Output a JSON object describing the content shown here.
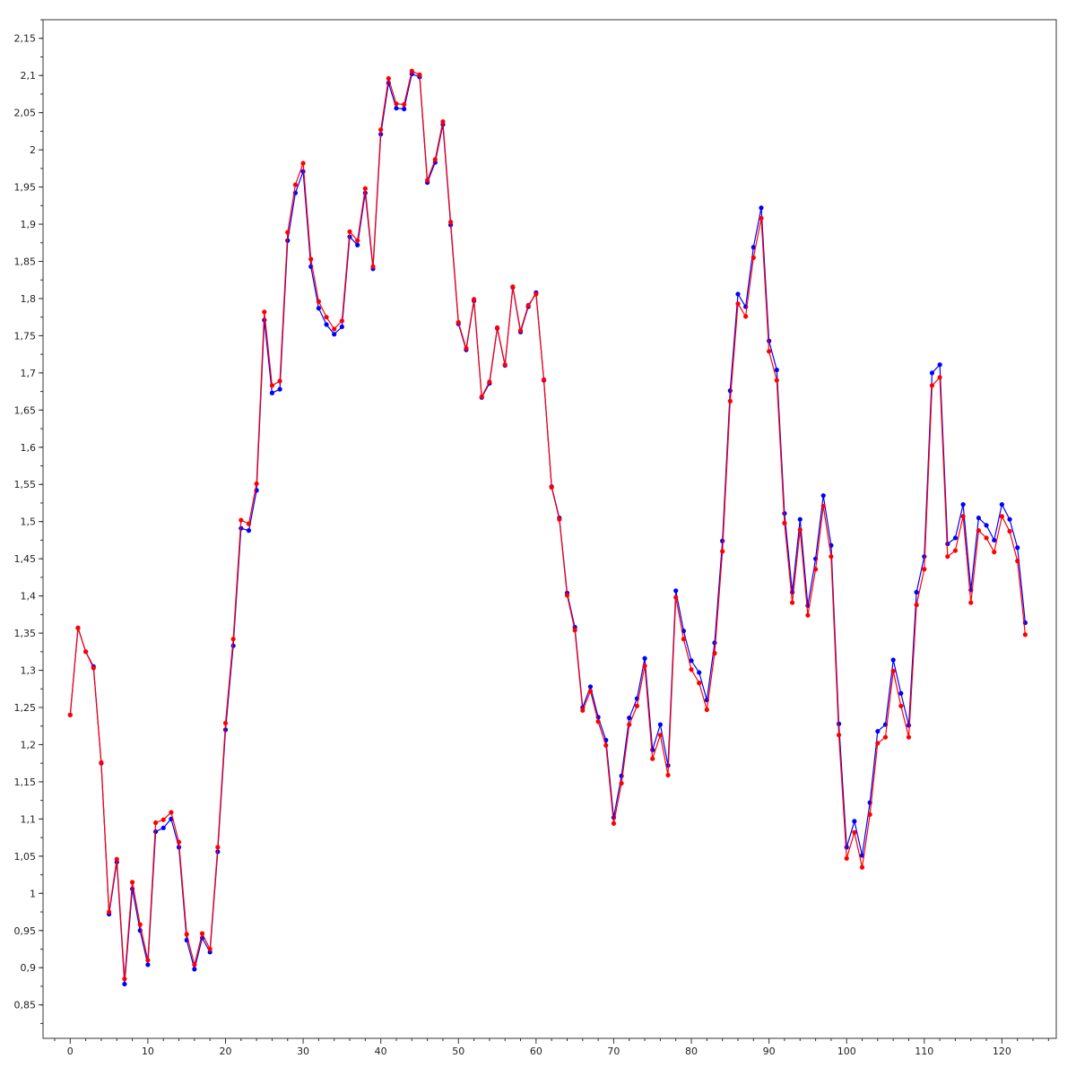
{
  "chart_data": {
    "type": "line",
    "title": "",
    "xlabel": "",
    "ylabel": "",
    "xlim": [
      -3.5,
      127
    ],
    "ylim": [
      0.805,
      2.175
    ],
    "grid": true,
    "legend": "none",
    "x_tick_values": [
      0,
      10,
      20,
      30,
      40,
      50,
      60,
      70,
      80,
      90,
      100,
      110,
      120
    ],
    "x_tick_labels": [
      "0",
      "10",
      "20",
      "30",
      "40",
      "50",
      "60",
      "70",
      "80",
      "90",
      "100",
      "110",
      "120"
    ],
    "y_tick_values": [
      0.85,
      0.9,
      0.95,
      1,
      1.05,
      1.1,
      1.15,
      1.2,
      1.25,
      1.3,
      1.35,
      1.4,
      1.45,
      1.5,
      1.55,
      1.6,
      1.65,
      1.7,
      1.75,
      1.8,
      1.85,
      1.9,
      1.95,
      2,
      2.05,
      2.1,
      2.15
    ],
    "y_tick_labels": [
      "0,85",
      "0,9",
      "0,95",
      "1",
      "1,05",
      "1,1",
      "1,15",
      "1,2",
      "1,25",
      "1,3",
      "1,35",
      "1,4",
      "1,45",
      "1,5",
      "1,55",
      "1,6",
      "1,65",
      "1,7",
      "1,75",
      "1,8",
      "1,85",
      "1,9",
      "1,95",
      "2",
      "2,05",
      "2,1",
      "2,15"
    ],
    "series": [
      {
        "color": "#0000ff",
        "x": [
          0,
          1,
          2,
          3,
          4,
          5,
          6,
          7,
          8,
          9,
          10,
          11,
          12,
          13,
          14,
          15,
          16,
          17,
          18,
          19,
          20,
          21,
          22,
          23,
          24,
          25,
          26,
          27,
          28,
          29,
          30,
          31,
          32,
          33,
          34,
          35,
          36,
          37,
          38,
          39,
          40,
          41,
          42,
          43,
          44,
          45,
          46,
          47,
          48,
          49,
          50,
          51,
          52,
          53,
          54,
          55,
          56,
          57,
          58,
          59,
          60,
          61,
          62,
          63,
          64,
          65,
          66,
          67,
          68,
          69,
          70,
          71,
          72,
          73,
          74,
          75,
          76,
          77,
          78,
          79,
          80,
          81,
          82,
          83,
          84,
          85,
          86,
          87,
          88,
          89,
          90,
          91,
          92,
          93,
          94,
          95,
          96,
          97,
          98,
          99,
          100,
          101,
          102,
          103,
          104,
          105,
          106,
          107,
          108,
          109,
          110,
          111,
          112,
          113,
          114,
          115,
          116,
          117,
          118,
          119,
          120,
          121,
          122,
          123
        ],
        "values": [
          1.24,
          1.357,
          1.325,
          1.305,
          1.175,
          0.972,
          1.042,
          0.878,
          1.006,
          0.95,
          0.904,
          1.083,
          1.088,
          1.1,
          1.062,
          0.937,
          0.898,
          0.94,
          0.921,
          1.056,
          1.22,
          1.333,
          1.491,
          1.488,
          1.542,
          1.771,
          1.673,
          1.678,
          1.878,
          1.942,
          1.971,
          1.843,
          1.787,
          1.765,
          1.752,
          1.762,
          1.883,
          1.872,
          1.942,
          1.84,
          2.021,
          2.09,
          2.056,
          2.055,
          2.102,
          2.098,
          1.956,
          1.983,
          2.034,
          1.899,
          1.766,
          1.731,
          1.797,
          1.667,
          1.686,
          1.76,
          1.71,
          1.815,
          1.755,
          1.789,
          1.808,
          1.69,
          1.547,
          1.505,
          1.404,
          1.358,
          1.25,
          1.278,
          1.237,
          1.206,
          1.102,
          1.158,
          1.236,
          1.262,
          1.316,
          1.193,
          1.227,
          1.172,
          1.407,
          1.353,
          1.313,
          1.297,
          1.26,
          1.337,
          1.474,
          1.676,
          1.806,
          1.789,
          1.869,
          1.922,
          1.743,
          1.704,
          1.511,
          1.405,
          1.503,
          1.387,
          1.45,
          1.535,
          1.468,
          1.228,
          1.062,
          1.097,
          1.051,
          1.122,
          1.218,
          1.227,
          1.314,
          1.269,
          1.226,
          1.405,
          1.453,
          1.7,
          1.711,
          1.47,
          1.478,
          1.523,
          1.408,
          1.505,
          1.495,
          1.475,
          1.523,
          1.503,
          1.465,
          1.364
        ]
      },
      {
        "color": "#ff0000",
        "x": [
          0,
          1,
          2,
          3,
          4,
          5,
          6,
          7,
          8,
          9,
          10,
          11,
          12,
          13,
          14,
          15,
          16,
          17,
          18,
          19,
          20,
          21,
          22,
          23,
          24,
          25,
          26,
          27,
          28,
          29,
          30,
          31,
          32,
          33,
          34,
          35,
          36,
          37,
          38,
          39,
          40,
          41,
          42,
          43,
          44,
          45,
          46,
          47,
          48,
          49,
          50,
          51,
          52,
          53,
          54,
          55,
          56,
          57,
          58,
          59,
          60,
          61,
          62,
          63,
          64,
          65,
          66,
          67,
          68,
          69,
          70,
          71,
          72,
          73,
          74,
          75,
          76,
          77,
          78,
          79,
          80,
          81,
          82,
          83,
          84,
          85,
          86,
          87,
          88,
          89,
          90,
          91,
          92,
          93,
          94,
          95,
          96,
          97,
          98,
          99,
          100,
          101,
          102,
          103,
          104,
          105,
          106,
          107,
          108,
          109,
          110,
          111,
          112,
          113,
          114,
          115,
          116,
          117,
          118,
          119,
          120,
          121,
          122,
          123
        ],
        "values": [
          1.24,
          1.357,
          1.325,
          1.303,
          1.176,
          0.975,
          1.046,
          0.885,
          1.015,
          0.958,
          0.91,
          1.095,
          1.099,
          1.109,
          1.069,
          0.945,
          0.904,
          0.946,
          0.925,
          1.062,
          1.229,
          1.342,
          1.502,
          1.497,
          1.551,
          1.782,
          1.683,
          1.689,
          1.889,
          1.953,
          1.982,
          1.853,
          1.796,
          1.775,
          1.759,
          1.77,
          1.89,
          1.878,
          1.948,
          1.843,
          2.027,
          2.096,
          2.062,
          2.061,
          2.106,
          2.101,
          1.959,
          1.987,
          2.038,
          1.903,
          1.768,
          1.733,
          1.799,
          1.668,
          1.688,
          1.761,
          1.711,
          1.816,
          1.757,
          1.791,
          1.806,
          1.691,
          1.546,
          1.503,
          1.401,
          1.354,
          1.246,
          1.272,
          1.231,
          1.199,
          1.094,
          1.148,
          1.227,
          1.252,
          1.306,
          1.181,
          1.213,
          1.159,
          1.398,
          1.342,
          1.301,
          1.283,
          1.247,
          1.323,
          1.46,
          1.662,
          1.793,
          1.776,
          1.855,
          1.908,
          1.729,
          1.69,
          1.498,
          1.391,
          1.489,
          1.374,
          1.436,
          1.521,
          1.453,
          1.213,
          1.047,
          1.082,
          1.035,
          1.106,
          1.202,
          1.21,
          1.299,
          1.252,
          1.21,
          1.388,
          1.436,
          1.683,
          1.694,
          1.453,
          1.461,
          1.507,
          1.391,
          1.488,
          1.478,
          1.459,
          1.507,
          1.487,
          1.447,
          1.348
        ]
      }
    ]
  }
}
